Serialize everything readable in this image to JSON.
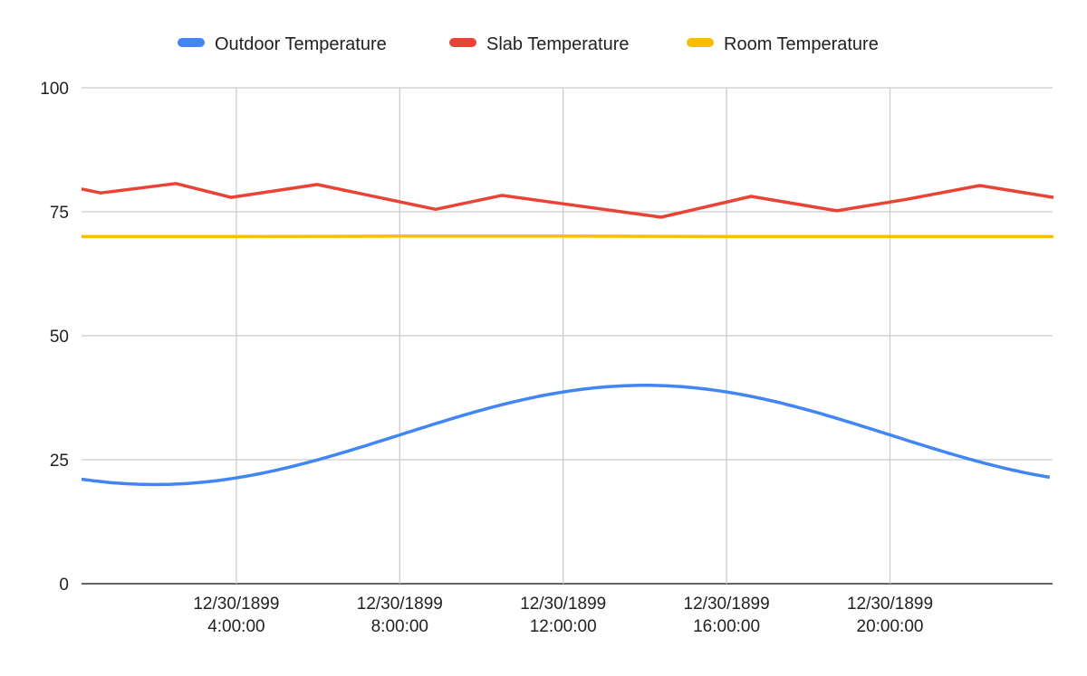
{
  "chart_data": {
    "type": "line",
    "title": "",
    "xlabel": "",
    "ylabel": "",
    "ylim": [
      0,
      100
    ],
    "xlim_hours": [
      0.21,
      24
    ],
    "y_ticks": [
      "0",
      "25",
      "50",
      "75",
      "100"
    ],
    "y_tick_values": [
      0,
      25,
      50,
      75,
      100
    ],
    "x_ticks": [
      {
        "hour": 4,
        "line1": "12/30/1899",
        "line2": "4:00:00"
      },
      {
        "hour": 8,
        "line1": "12/30/1899",
        "line2": "8:00:00"
      },
      {
        "hour": 12,
        "line1": "12/30/1899",
        "line2": "12:00:00"
      },
      {
        "hour": 16,
        "line1": "12/30/1899",
        "line2": "16:00:00"
      },
      {
        "hour": 20,
        "line1": "12/30/1899",
        "line2": "20:00:00"
      }
    ],
    "grid": true,
    "legend_position": "top-center",
    "series": [
      {
        "name": "Outdoor Temperature",
        "color": "#4285f4",
        "formula_note": "sinusoid min 20 at 2:00, max 40 at 14:00",
        "x": [
          0.21,
          1,
          2,
          3,
          4,
          5,
          6,
          7,
          8,
          9,
          10,
          11,
          12,
          13,
          14,
          15,
          16,
          17,
          18,
          19,
          20,
          21,
          22,
          23,
          24
        ],
        "values": [
          21.0,
          20.3,
          20.0,
          20.3,
          21.3,
          22.9,
          25.0,
          27.4,
          30.0,
          32.6,
          35.0,
          37.1,
          38.7,
          39.7,
          40.0,
          39.7,
          38.7,
          37.1,
          35.0,
          32.6,
          30.0,
          27.4,
          25.0,
          22.9,
          21.3
        ]
      },
      {
        "name": "Slab Temperature",
        "color": "#ea4335",
        "x": [
          0.21,
          0.68,
          2.52,
          3.87,
          5.98,
          8.88,
          10.5,
          12.0,
          14.4,
          16.6,
          18.7,
          20.4,
          22.2,
          24.0
        ],
        "values": [
          79.6,
          78.8,
          80.7,
          77.9,
          80.5,
          75.5,
          78.3,
          76.6,
          73.9,
          78.1,
          75.2,
          77.5,
          80.3,
          77.9
        ]
      },
      {
        "name": "Room Temperature",
        "color": "#fbbc04",
        "x": [
          0.21,
          4,
          8,
          12,
          16,
          20,
          24
        ],
        "values": [
          70,
          70,
          70.1,
          70.1,
          70,
          70,
          70
        ]
      }
    ]
  }
}
